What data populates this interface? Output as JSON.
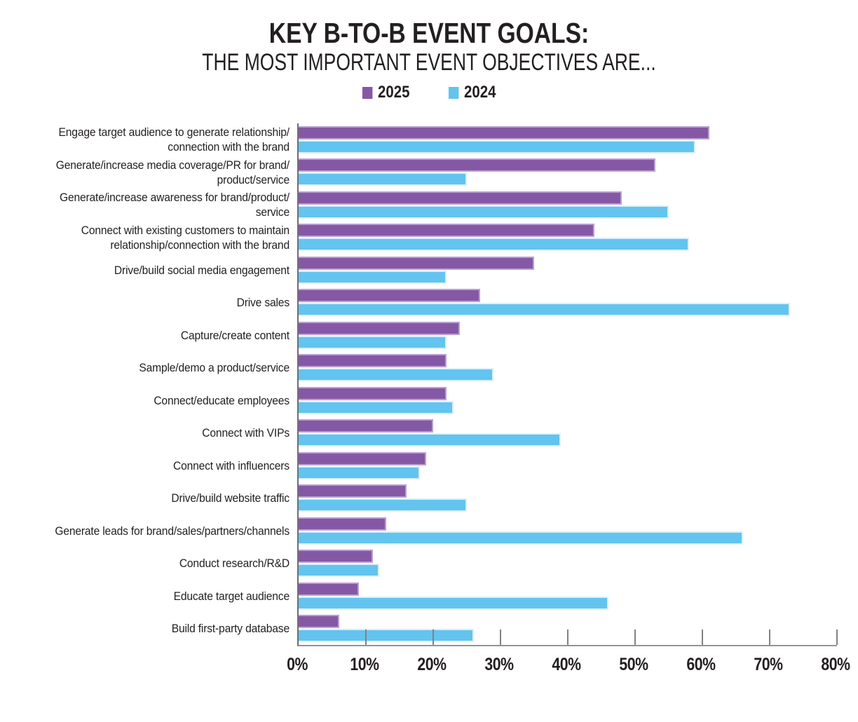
{
  "title": "KEY B-TO-B EVENT GOALS:",
  "subtitle": "THE MOST IMPORTANT EVENT OBJECTIVES ARE...",
  "legend": [
    {
      "label": "2025",
      "color": "#8558a6"
    },
    {
      "label": "2024",
      "color": "#63c4ef"
    }
  ],
  "colors": {
    "purple_fill": "#8558a6",
    "purple_edge": "#bba0d2",
    "blue_fill": "#63c4ef",
    "blue_edge": "#d9effb",
    "text": "#231f20",
    "axis_line": "#6d6e71",
    "baseline": "#939598",
    "tick": "#808285"
  },
  "x_axis": {
    "tick_labels": [
      "0%",
      "10%",
      "20%",
      "30%",
      "40%",
      "50%",
      "60%",
      "70%",
      "80%"
    ],
    "min": 0,
    "max": 80
  },
  "chart_data": {
    "type": "bar",
    "orientation": "horizontal",
    "title": "KEY B-TO-B EVENT GOALS:",
    "subtitle": "THE MOST IMPORTANT EVENT OBJECTIVES ARE...",
    "xlabel": "",
    "ylabel": "",
    "xlim": [
      0,
      80
    ],
    "grid": false,
    "legend_position": "top-center",
    "value_unit": "%",
    "categories": [
      "Engage target audience to generate relationship/ connection with the brand",
      "Generate/increase media coverage/PR for brand/ product/service",
      "Generate/increase awareness for brand/product/ service",
      "Connect with existing customers to maintain relationship/connection with the brand",
      "Drive/build social media engagement",
      "Drive sales",
      "Capture/create content",
      "Sample/demo a product/service",
      "Connect/educate employees",
      "Connect with VIPs",
      "Connect with influencers",
      "Drive/build website traffic",
      "Generate leads for brand/sales/partners/channels",
      "Conduct research/R&D",
      "Educate target audience",
      "Build first-party database"
    ],
    "series": [
      {
        "name": "2025",
        "color": "#8558a6",
        "values": [
          61,
          53,
          48,
          44,
          35,
          27,
          24,
          22,
          22,
          20,
          19,
          16,
          13,
          11,
          9,
          6
        ]
      },
      {
        "name": "2024",
        "color": "#63c4ef",
        "values": [
          59,
          25,
          55,
          58,
          22,
          73,
          22,
          29,
          23,
          39,
          18,
          25,
          66,
          12,
          46,
          26
        ]
      }
    ]
  }
}
